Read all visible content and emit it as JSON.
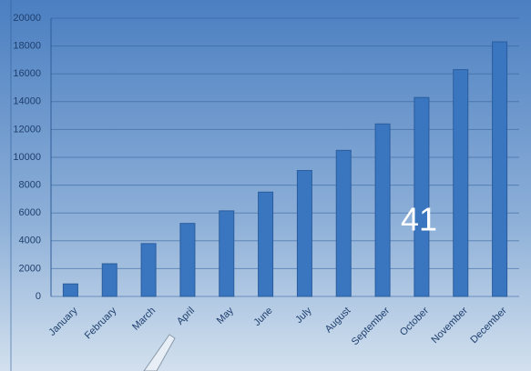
{
  "chart_data": {
    "type": "bar",
    "categories": [
      "January",
      "February",
      "March",
      "April",
      "May",
      "June",
      "July",
      "August",
      "September",
      "October",
      "November",
      "December"
    ],
    "values": [
      900,
      2350,
      3800,
      5250,
      6150,
      7500,
      9050,
      10500,
      12400,
      14300,
      16300,
      18300
    ],
    "color": "#3a76bf",
    "ylim": [
      0,
      20000
    ],
    "yticks": [
      0,
      2000,
      4000,
      6000,
      8000,
      10000,
      12000,
      14000,
      16000,
      18000,
      20000
    ],
    "grid": true,
    "annotation": "41"
  }
}
